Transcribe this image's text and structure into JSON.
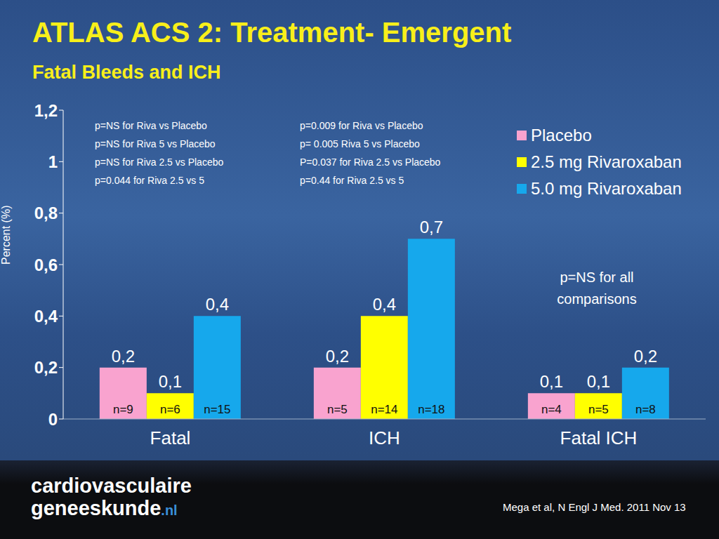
{
  "chart_data": {
    "type": "bar",
    "title": "ATLAS ACS 2: Treatment- Emergent",
    "subtitle": "Fatal Bleeds and ICH",
    "y_label": "Percent (%)",
    "categories": [
      "Fatal",
      "ICH",
      "Fatal ICH"
    ],
    "series": [
      {
        "name": "Placebo",
        "color": "#f9a3cf",
        "values": [
          0.2,
          0.2,
          0.1
        ],
        "value_labels": [
          "0,2",
          "0,2",
          "0,1"
        ],
        "n_labels": [
          "n=9",
          "n=5",
          "n=4"
        ]
      },
      {
        "name": "2.5 mg Rivaroxaban",
        "color": "#ffff00",
        "values": [
          0.1,
          0.4,
          0.1
        ],
        "value_labels": [
          "0,1",
          "0,4",
          "0,1"
        ],
        "n_labels": [
          "n=6",
          "n=14",
          "n=5"
        ]
      },
      {
        "name": "5.0 mg Rivaroxaban",
        "color": "#16a8ec",
        "values": [
          0.4,
          0.7,
          0.2
        ],
        "value_labels": [
          "0,4",
          "0,7",
          "0,2"
        ],
        "n_labels": [
          "n=15",
          "n=18",
          "n=8"
        ]
      }
    ],
    "ylim": [
      0,
      1.2
    ],
    "yticks": [
      0,
      {
        "value": 0.2,
        "label": "0,2"
      },
      {
        "value": 0.4,
        "label": "0,4"
      },
      {
        "value": 0.6,
        "label": "0,6"
      },
      {
        "value": 0.8,
        "label": "0,8"
      },
      1,
      {
        "value": 1.2,
        "label": "1,2"
      }
    ],
    "grid": false,
    "legend": "upper right",
    "data_labels": true,
    "annotations": [
      [
        "p=NS for Riva vs Placebo",
        "p=NS for Riva 5 vs Placebo",
        "p=NS for Riva 2.5 vs Placebo",
        "p=0.044 for Riva 2.5 vs 5"
      ],
      [
        "p=0.009 for Riva vs Placebo",
        "p= 0.005 Riva 5 vs Placebo",
        "P=0.037 for Riva 2.5 vs Placebo",
        "p=0.44 for Riva 2.5 vs 5"
      ],
      [
        "p=NS for all comparisons"
      ]
    ],
    "footer": {
      "logo": [
        "cardiovasculaire",
        "geneeskunde",
        ".nl"
      ],
      "citation": "Mega et al, N Engl J Med. 2011 Nov 13"
    }
  }
}
